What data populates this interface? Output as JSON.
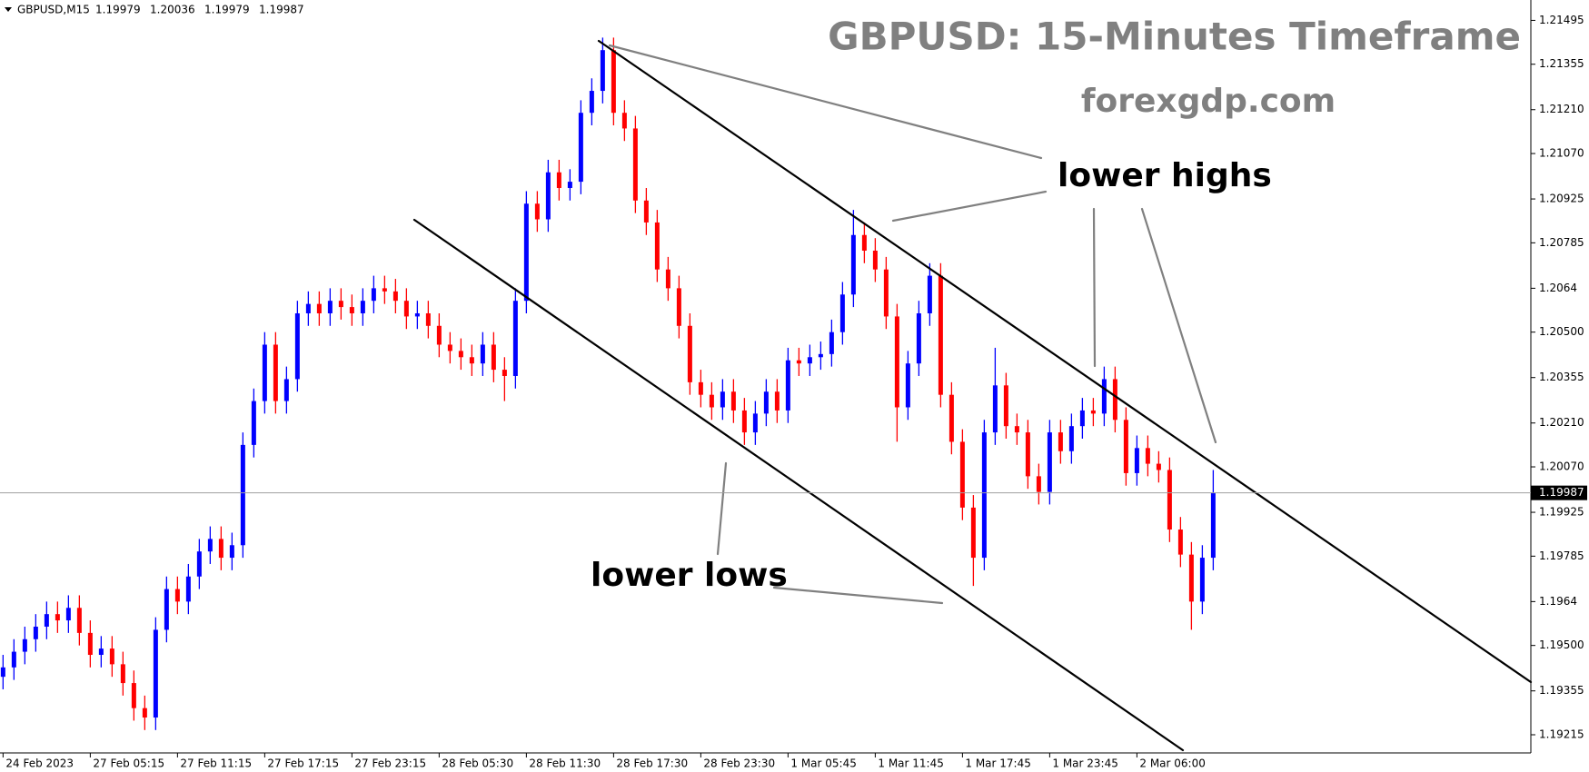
{
  "chart_data": {
    "type": "candlestick",
    "symbol": "GBPUSD,M15",
    "header_ohlc": [
      1.19979,
      1.20036,
      1.19979,
      1.19987
    ],
    "title": "GBPUSD: 15-Minutes Timeframe",
    "subtitle": "forexgdp.com",
    "annotations": [
      "lower highs",
      "lower lows"
    ],
    "last_price": 1.19987,
    "colors": {
      "up": "#0000ff",
      "down": "#ff0000"
    },
    "xlim": [
      -0.84,
      420.4
    ],
    "xticks": [
      {
        "value": 0,
        "label": "24 Feb 2023"
      },
      {
        "value": 24,
        "label": "27 Feb 05:15"
      },
      {
        "value": 48,
        "label": "27 Feb 11:15"
      },
      {
        "value": 72,
        "label": "27 Feb 17:15"
      },
      {
        "value": 96,
        "label": "27 Feb 23:15"
      },
      {
        "value": 120,
        "label": "28 Feb 05:30"
      },
      {
        "value": 144,
        "label": "28 Feb 11:30"
      },
      {
        "value": 168,
        "label": "28 Feb 17:30"
      },
      {
        "value": 192,
        "label": "28 Feb 23:30"
      },
      {
        "value": 216,
        "label": "1 Mar 05:45"
      },
      {
        "value": 240,
        "label": "1 Mar 11:45"
      },
      {
        "value": 264,
        "label": "1 Mar 17:45"
      },
      {
        "value": 288,
        "label": "1 Mar 23:45"
      },
      {
        "value": 312,
        "label": "2 Mar 06:00"
      }
    ],
    "ylim": [
      1.19157,
      1.2156
    ],
    "yticks": [
      1.21495,
      1.21355,
      {
        "value": 1.2121,
        "label": "1.21210"
      },
      {
        "value": 1.2107,
        "label": "1.21070"
      },
      1.20925,
      1.20785,
      1.2064,
      {
        "value": 1.205,
        "label": "1.20500"
      },
      1.20355,
      {
        "value": 1.2021,
        "label": "1.20210"
      },
      {
        "value": 1.2007,
        "label": "1.20070"
      },
      1.19925,
      1.19785,
      1.1964,
      {
        "value": 1.195,
        "label": "1.19500"
      },
      1.19355,
      1.19215
    ],
    "x": [
      0,
      3,
      6,
      9,
      12,
      15,
      18,
      21,
      24,
      27,
      30,
      33,
      36,
      39,
      42,
      45,
      48,
      51,
      54,
      57,
      60,
      63,
      66,
      69,
      72,
      75,
      78,
      81,
      84,
      87,
      90,
      93,
      96,
      99,
      102,
      105,
      108,
      111,
      114,
      117,
      120,
      123,
      126,
      129,
      132,
      135,
      138,
      141,
      144,
      147,
      150,
      153,
      156,
      159,
      162,
      165,
      168,
      171,
      174,
      177,
      180,
      183,
      186,
      189,
      192,
      195,
      198,
      201,
      204,
      207,
      210,
      213,
      216,
      219,
      222,
      225,
      228,
      231,
      234,
      237,
      240,
      243,
      246,
      249,
      252,
      255,
      258,
      261,
      264,
      267,
      270,
      273,
      276,
      279,
      282,
      285,
      288,
      291,
      294,
      297,
      300,
      303,
      306,
      309,
      312,
      315,
      318,
      321,
      324,
      327,
      330,
      333
    ],
    "open": [
      1.194,
      1.1943,
      1.1948,
      1.1952,
      1.1956,
      1.196,
      1.1958,
      1.1962,
      1.1954,
      1.1947,
      1.1949,
      1.1944,
      1.1938,
      1.193,
      1.1927,
      1.1955,
      1.1968,
      1.1964,
      1.1972,
      1.198,
      1.1984,
      1.1978,
      1.1982,
      1.2014,
      1.2028,
      1.2046,
      1.2028,
      1.2035,
      1.2056,
      1.2059,
      1.2056,
      1.206,
      1.2058,
      1.2056,
      1.206,
      1.2064,
      1.2063,
      1.206,
      1.2055,
      1.2056,
      1.2052,
      1.2046,
      1.2044,
      1.2042,
      1.204,
      1.2046,
      1.2038,
      1.2036,
      1.206,
      1.2091,
      1.2086,
      1.2101,
      1.2096,
      1.2098,
      1.212,
      1.2127,
      1.214,
      1.212,
      1.2115,
      1.2092,
      1.2085,
      1.207,
      1.2064,
      1.2052,
      1.2034,
      1.203,
      1.2026,
      1.2031,
      1.2025,
      1.2018,
      1.2024,
      1.2031,
      1.2025,
      1.2041,
      1.204,
      1.2042,
      1.2043,
      1.205,
      1.2062,
      1.2081,
      1.2076,
      1.207,
      1.2055,
      1.2026,
      1.204,
      1.2056,
      1.2068,
      1.203,
      1.2015,
      1.1994,
      1.1978,
      1.2018,
      1.2033,
      1.202,
      1.2018,
      1.2004,
      1.1999,
      1.2018,
      1.2012,
      1.202,
      1.2025,
      1.2024,
      1.2035,
      1.2022,
      1.2005,
      1.2013,
      1.2008,
      1.2006,
      1.1987,
      1.1979,
      1.1964,
      1.1978
    ],
    "high": [
      1.1947,
      1.1952,
      1.1956,
      1.196,
      1.1964,
      1.1964,
      1.1966,
      1.1966,
      1.1958,
      1.1953,
      1.1953,
      1.1948,
      1.1942,
      1.1934,
      1.1959,
      1.1972,
      1.1972,
      1.1976,
      1.1984,
      1.1988,
      1.1988,
      1.1986,
      1.2018,
      1.2032,
      1.205,
      1.205,
      1.2039,
      1.206,
      1.2063,
      1.2063,
      1.2064,
      1.2064,
      1.2062,
      1.2064,
      1.2068,
      1.2068,
      1.2067,
      1.2064,
      1.206,
      1.206,
      1.2056,
      1.205,
      1.2048,
      1.2046,
      1.205,
      1.205,
      1.2042,
      1.2064,
      1.2095,
      1.2095,
      1.2105,
      1.2105,
      1.2102,
      1.2124,
      1.2131,
      1.2144,
      1.2144,
      1.2124,
      1.2119,
      1.2096,
      1.2089,
      1.2074,
      1.2068,
      1.2056,
      1.2038,
      1.2034,
      1.2035,
      1.2035,
      1.2029,
      1.2028,
      1.2035,
      1.2035,
      1.2045,
      1.2045,
      1.2046,
      1.2047,
      1.2054,
      1.2066,
      1.2089,
      1.2085,
      1.208,
      1.2074,
      1.2059,
      1.2044,
      1.206,
      1.2072,
      1.2072,
      1.2034,
      1.2019,
      1.1998,
      1.2022,
      1.2045,
      1.2037,
      1.2024,
      1.2022,
      1.2008,
      1.2022,
      1.2022,
      1.2024,
      1.2029,
      1.2029,
      1.2039,
      1.2039,
      1.2026,
      1.2017,
      1.2017,
      1.2012,
      1.201,
      1.1991,
      1.1983,
      1.1982,
      1.2006
    ],
    "low": [
      1.1936,
      1.1939,
      1.1944,
      1.1948,
      1.1952,
      1.1954,
      1.1954,
      1.195,
      1.1943,
      1.1943,
      1.194,
      1.1934,
      1.1926,
      1.1923,
      1.1923,
      1.1951,
      1.196,
      1.196,
      1.1968,
      1.1976,
      1.1974,
      1.1974,
      1.1978,
      1.201,
      1.2024,
      1.2024,
      1.2024,
      1.2031,
      1.2052,
      1.2052,
      1.2052,
      1.2054,
      1.2052,
      1.2052,
      1.2056,
      1.2059,
      1.2056,
      1.2051,
      1.2051,
      1.2048,
      1.2042,
      1.204,
      1.2038,
      1.2036,
      1.2036,
      1.2034,
      1.2028,
      1.2032,
      1.2056,
      1.2082,
      1.2082,
      1.2092,
      1.2092,
      1.2094,
      1.2116,
      1.2123,
      1.2116,
      1.2111,
      1.2088,
      1.2081,
      1.2066,
      1.206,
      1.2048,
      1.203,
      1.2026,
      1.2022,
      1.2022,
      1.2021,
      1.2014,
      1.2014,
      1.202,
      1.2021,
      1.2021,
      1.2036,
      1.2036,
      1.2038,
      1.2039,
      1.2046,
      1.2058,
      1.2072,
      1.2066,
      1.2051,
      1.2015,
      1.2022,
      1.2036,
      1.2052,
      1.2026,
      1.2011,
      1.199,
      1.1969,
      1.1974,
      1.2014,
      1.2016,
      1.2014,
      1.2,
      1.1995,
      1.1995,
      1.2008,
      1.2008,
      1.2016,
      1.202,
      1.202,
      1.2018,
      1.2001,
      1.2001,
      1.2004,
      1.2002,
      1.1983,
      1.1975,
      1.1955,
      1.196,
      1.1974
    ],
    "close": [
      1.1943,
      1.1948,
      1.1952,
      1.1956,
      1.196,
      1.1958,
      1.1962,
      1.1954,
      1.1947,
      1.1949,
      1.1944,
      1.1938,
      1.193,
      1.1927,
      1.1955,
      1.1968,
      1.1964,
      1.1972,
      1.198,
      1.1984,
      1.1978,
      1.1982,
      1.2014,
      1.2028,
      1.2046,
      1.2028,
      1.2035,
      1.2056,
      1.2059,
      1.2056,
      1.206,
      1.2058,
      1.2056,
      1.206,
      1.2064,
      1.2063,
      1.206,
      1.2055,
      1.2056,
      1.2052,
      1.2046,
      1.2044,
      1.2042,
      1.204,
      1.2046,
      1.2038,
      1.2036,
      1.206,
      1.2091,
      1.2086,
      1.2101,
      1.2096,
      1.2098,
      1.212,
      1.2127,
      1.214,
      1.212,
      1.2115,
      1.2092,
      1.2085,
      1.207,
      1.2064,
      1.2052,
      1.2034,
      1.203,
      1.2026,
      1.2031,
      1.2025,
      1.2018,
      1.2024,
      1.2031,
      1.2025,
      1.2041,
      1.204,
      1.2042,
      1.2043,
      1.205,
      1.2062,
      1.2081,
      1.2076,
      1.207,
      1.2055,
      1.2026,
      1.204,
      1.2056,
      1.2068,
      1.203,
      1.2015,
      1.1994,
      1.1978,
      1.2018,
      1.2033,
      1.202,
      1.2018,
      1.2004,
      1.1999,
      1.2018,
      1.2012,
      1.202,
      1.2025,
      1.2024,
      1.2035,
      1.2022,
      1.2005,
      1.2013,
      1.2008,
      1.2006,
      1.1987,
      1.1979,
      1.1964,
      1.1978,
      1.19987
    ]
  }
}
